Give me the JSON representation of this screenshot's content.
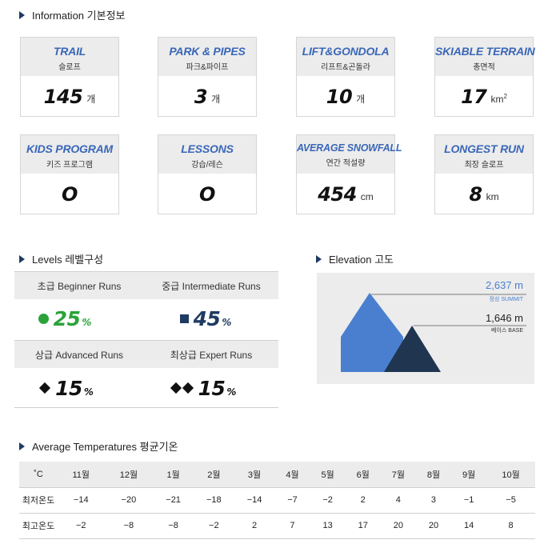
{
  "sections": {
    "information": "Information 기본정보",
    "levels": "Levels 레벨구성",
    "elevation": "Elevation 고도",
    "temperatures": "Average Temperatures 평균기온"
  },
  "info_cards": [
    {
      "title_en": "TRAIL",
      "title_ko": "슬로프",
      "value": "145",
      "unit": "개"
    },
    {
      "title_en": "PARK & PIPES",
      "title_ko": "파크&파이프",
      "value": "3",
      "unit": "개"
    },
    {
      "title_en": "LIFT&GONDOLA",
      "title_ko": "리프트&곤돌라",
      "value": "10",
      "unit": "개"
    },
    {
      "title_en": "SKIABLE TERRAIN",
      "title_ko": "총면적",
      "value": "17",
      "unit": "km",
      "unit_sup": "2"
    },
    {
      "title_en": "KIDS PROGRAM",
      "title_ko": "키즈 프로그램",
      "value": "O",
      "unit": ""
    },
    {
      "title_en": "LESSONS",
      "title_ko": "강습/레슨",
      "value": "O",
      "unit": ""
    },
    {
      "title_en": "AVERAGE SNOWFALL",
      "title_ko": "연간 적설량",
      "value": "454",
      "unit": "cm"
    },
    {
      "title_en": "LONGEST RUN",
      "title_ko": "최장 슬로프",
      "value": "8",
      "unit": "km"
    }
  ],
  "levels": [
    {
      "label": "초급 Beginner Runs",
      "value": "25",
      "suffix": "%",
      "symbol": "green-circle",
      "color": "#2aa33a"
    },
    {
      "label": "중급 Intermediate Runs",
      "value": "45",
      "suffix": "%",
      "symbol": "blue-square",
      "color": "#1f3b63"
    },
    {
      "label": "상급 Advanced Runs",
      "value": "15",
      "suffix": "%",
      "symbol": "black-diamond",
      "color": "#111111"
    },
    {
      "label": "최상급 Expert Runs",
      "value": "15",
      "suffix": "%",
      "symbol": "double-black-diamond",
      "color": "#111111"
    }
  ],
  "elevation": {
    "summit_value": "2,637 m",
    "summit_label": "정상 SUMMIT",
    "base_value": "1,646 m",
    "base_label": "베이스 BASE",
    "summit_color": "#4a7fcf",
    "base_color": "#1f3550"
  },
  "temperatures": {
    "unit_header": "˚C",
    "months": [
      "11월",
      "12월",
      "1월",
      "2월",
      "3월",
      "4월",
      "5월",
      "6월",
      "7월",
      "8월",
      "9월",
      "10월"
    ],
    "rows": [
      {
        "label": "최저온도",
        "values": [
          "−14",
          "−20",
          "−21",
          "−18",
          "−14",
          "−7",
          "−2",
          "2",
          "4",
          "3",
          "−1",
          "−5"
        ]
      },
      {
        "label": "최고온도",
        "values": [
          "−2",
          "−8",
          "−8",
          "−2",
          "2",
          "7",
          "13",
          "17",
          "20",
          "20",
          "14",
          "8"
        ]
      }
    ]
  }
}
